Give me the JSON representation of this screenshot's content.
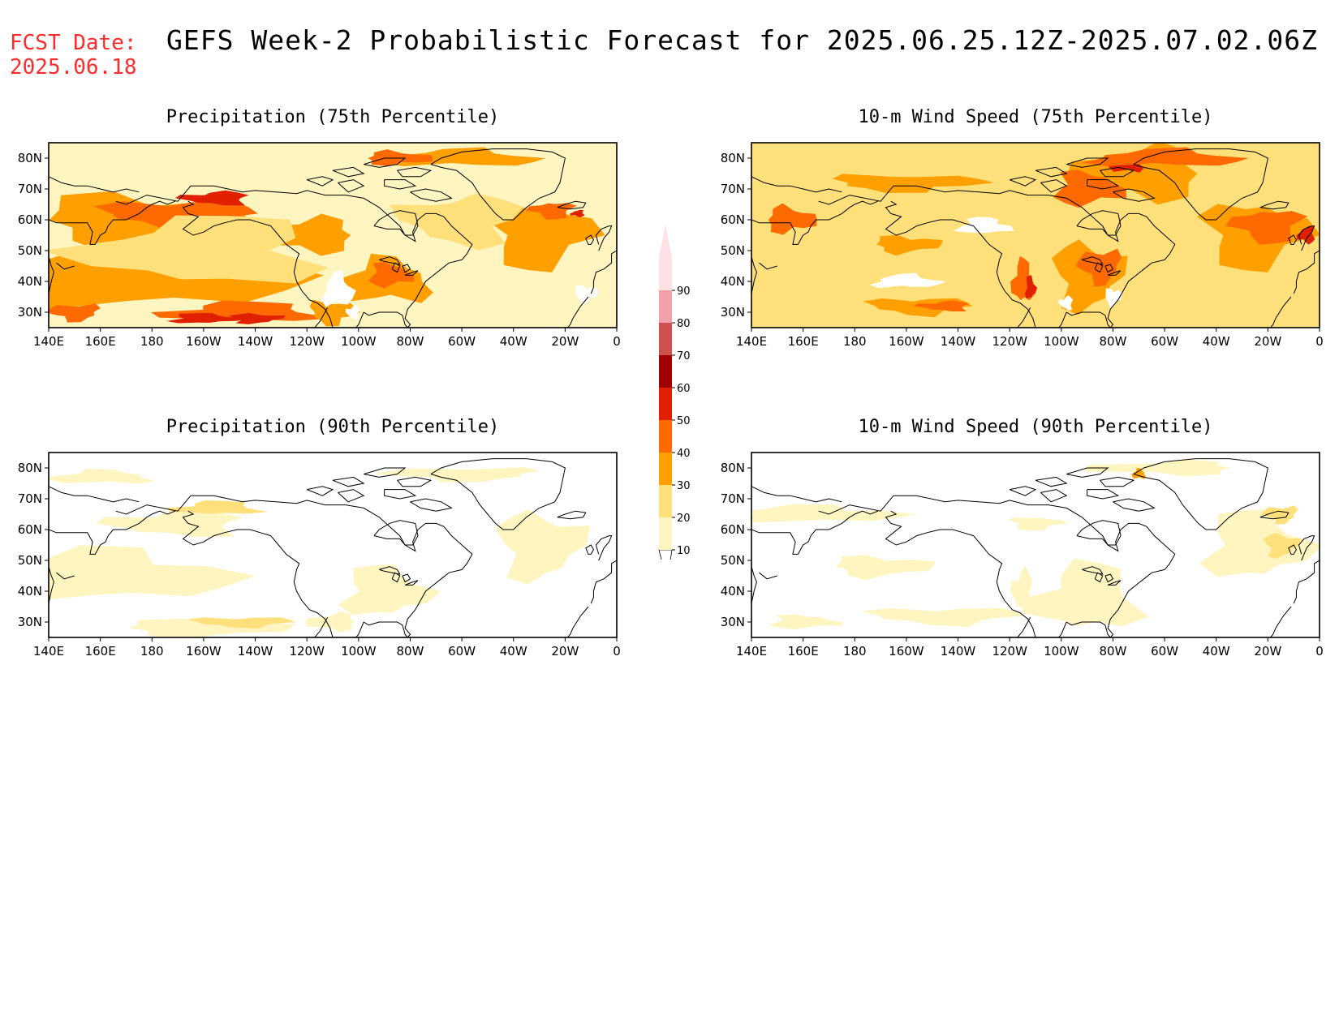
{
  "header": {
    "fcst_label": "FCST Date:",
    "fcst_date": "2025.06.18",
    "title": "GEFS Week-2 Probabilistic Forecast for 2025.06.25.12Z-2025.07.02.06Z"
  },
  "colors": {
    "c0": "#ffffff",
    "c10": "#fff5c0",
    "c20": "#ffe07a",
    "c30": "#ffa000",
    "c40": "#ff6a00",
    "c50": "#e02000",
    "c60": "#a00000",
    "c70": "#d05050",
    "c80": "#f0a0a8",
    "c90": "#ffe0e4",
    "coast": "#000000"
  },
  "colorbar": {
    "labels": [
      "10",
      "20",
      "30",
      "40",
      "50",
      "60",
      "70",
      "80",
      "90"
    ]
  },
  "axes": {
    "lat_labels": [
      "80N",
      "70N",
      "60N",
      "50N",
      "40N",
      "30N"
    ],
    "lon_labels": [
      "140E",
      "160E",
      "180",
      "160W",
      "140W",
      "120W",
      "100W",
      "80W",
      "60W",
      "40W",
      "20W",
      "0"
    ]
  },
  "panels": [
    {
      "id": "precip75",
      "title": "Precipitation (75th Percentile)"
    },
    {
      "id": "wind75",
      "title": "10-m Wind Speed (75th Percentile)"
    },
    {
      "id": "precip90",
      "title": "Precipitation (90th Percentile)"
    },
    {
      "id": "wind90",
      "title": "10-m Wind Speed (90th Percentile)"
    }
  ]
}
